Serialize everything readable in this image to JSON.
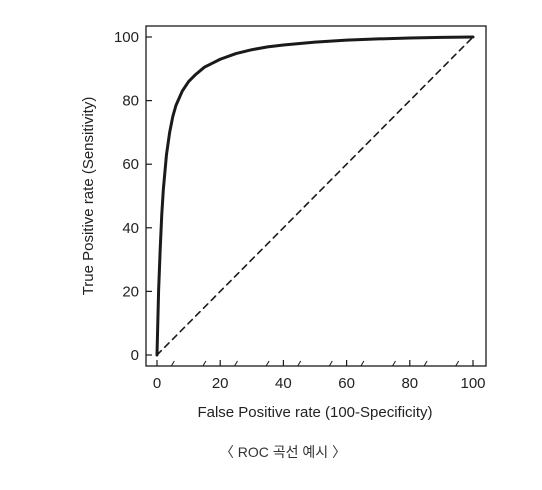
{
  "chart_data": {
    "type": "line",
    "title": "",
    "xlabel": "False Positive rate (100-Specificity)",
    "ylabel": "True Positive rate (Sensitivity)",
    "xlim": [
      0,
      100
    ],
    "ylim": [
      0,
      100
    ],
    "xticks": [
      0,
      20,
      40,
      60,
      80,
      100
    ],
    "yticks": [
      0,
      20,
      40,
      60,
      80,
      100
    ],
    "grid": false,
    "legend": "none",
    "series": [
      {
        "style": "solid",
        "color": "#1a1a1a",
        "x": [
          0,
          0.5,
          1,
          1.5,
          2,
          3,
          4,
          5,
          6,
          8,
          10,
          12,
          15,
          18,
          20,
          25,
          30,
          35,
          40,
          50,
          60,
          70,
          80,
          90,
          100
        ],
        "y": [
          0,
          20,
          33,
          44,
          52,
          63,
          70,
          75,
          78.5,
          83,
          86,
          88,
          90.5,
          92,
          93,
          94.8,
          96,
          96.9,
          97.5,
          98.4,
          99,
          99.4,
          99.7,
          99.9,
          100
        ]
      },
      {
        "style": "dashed",
        "color": "#1a1a1a",
        "x": [
          0,
          100
        ],
        "y": [
          0,
          100
        ]
      }
    ]
  },
  "caption": "〈 ROC 곡선 예시 〉"
}
